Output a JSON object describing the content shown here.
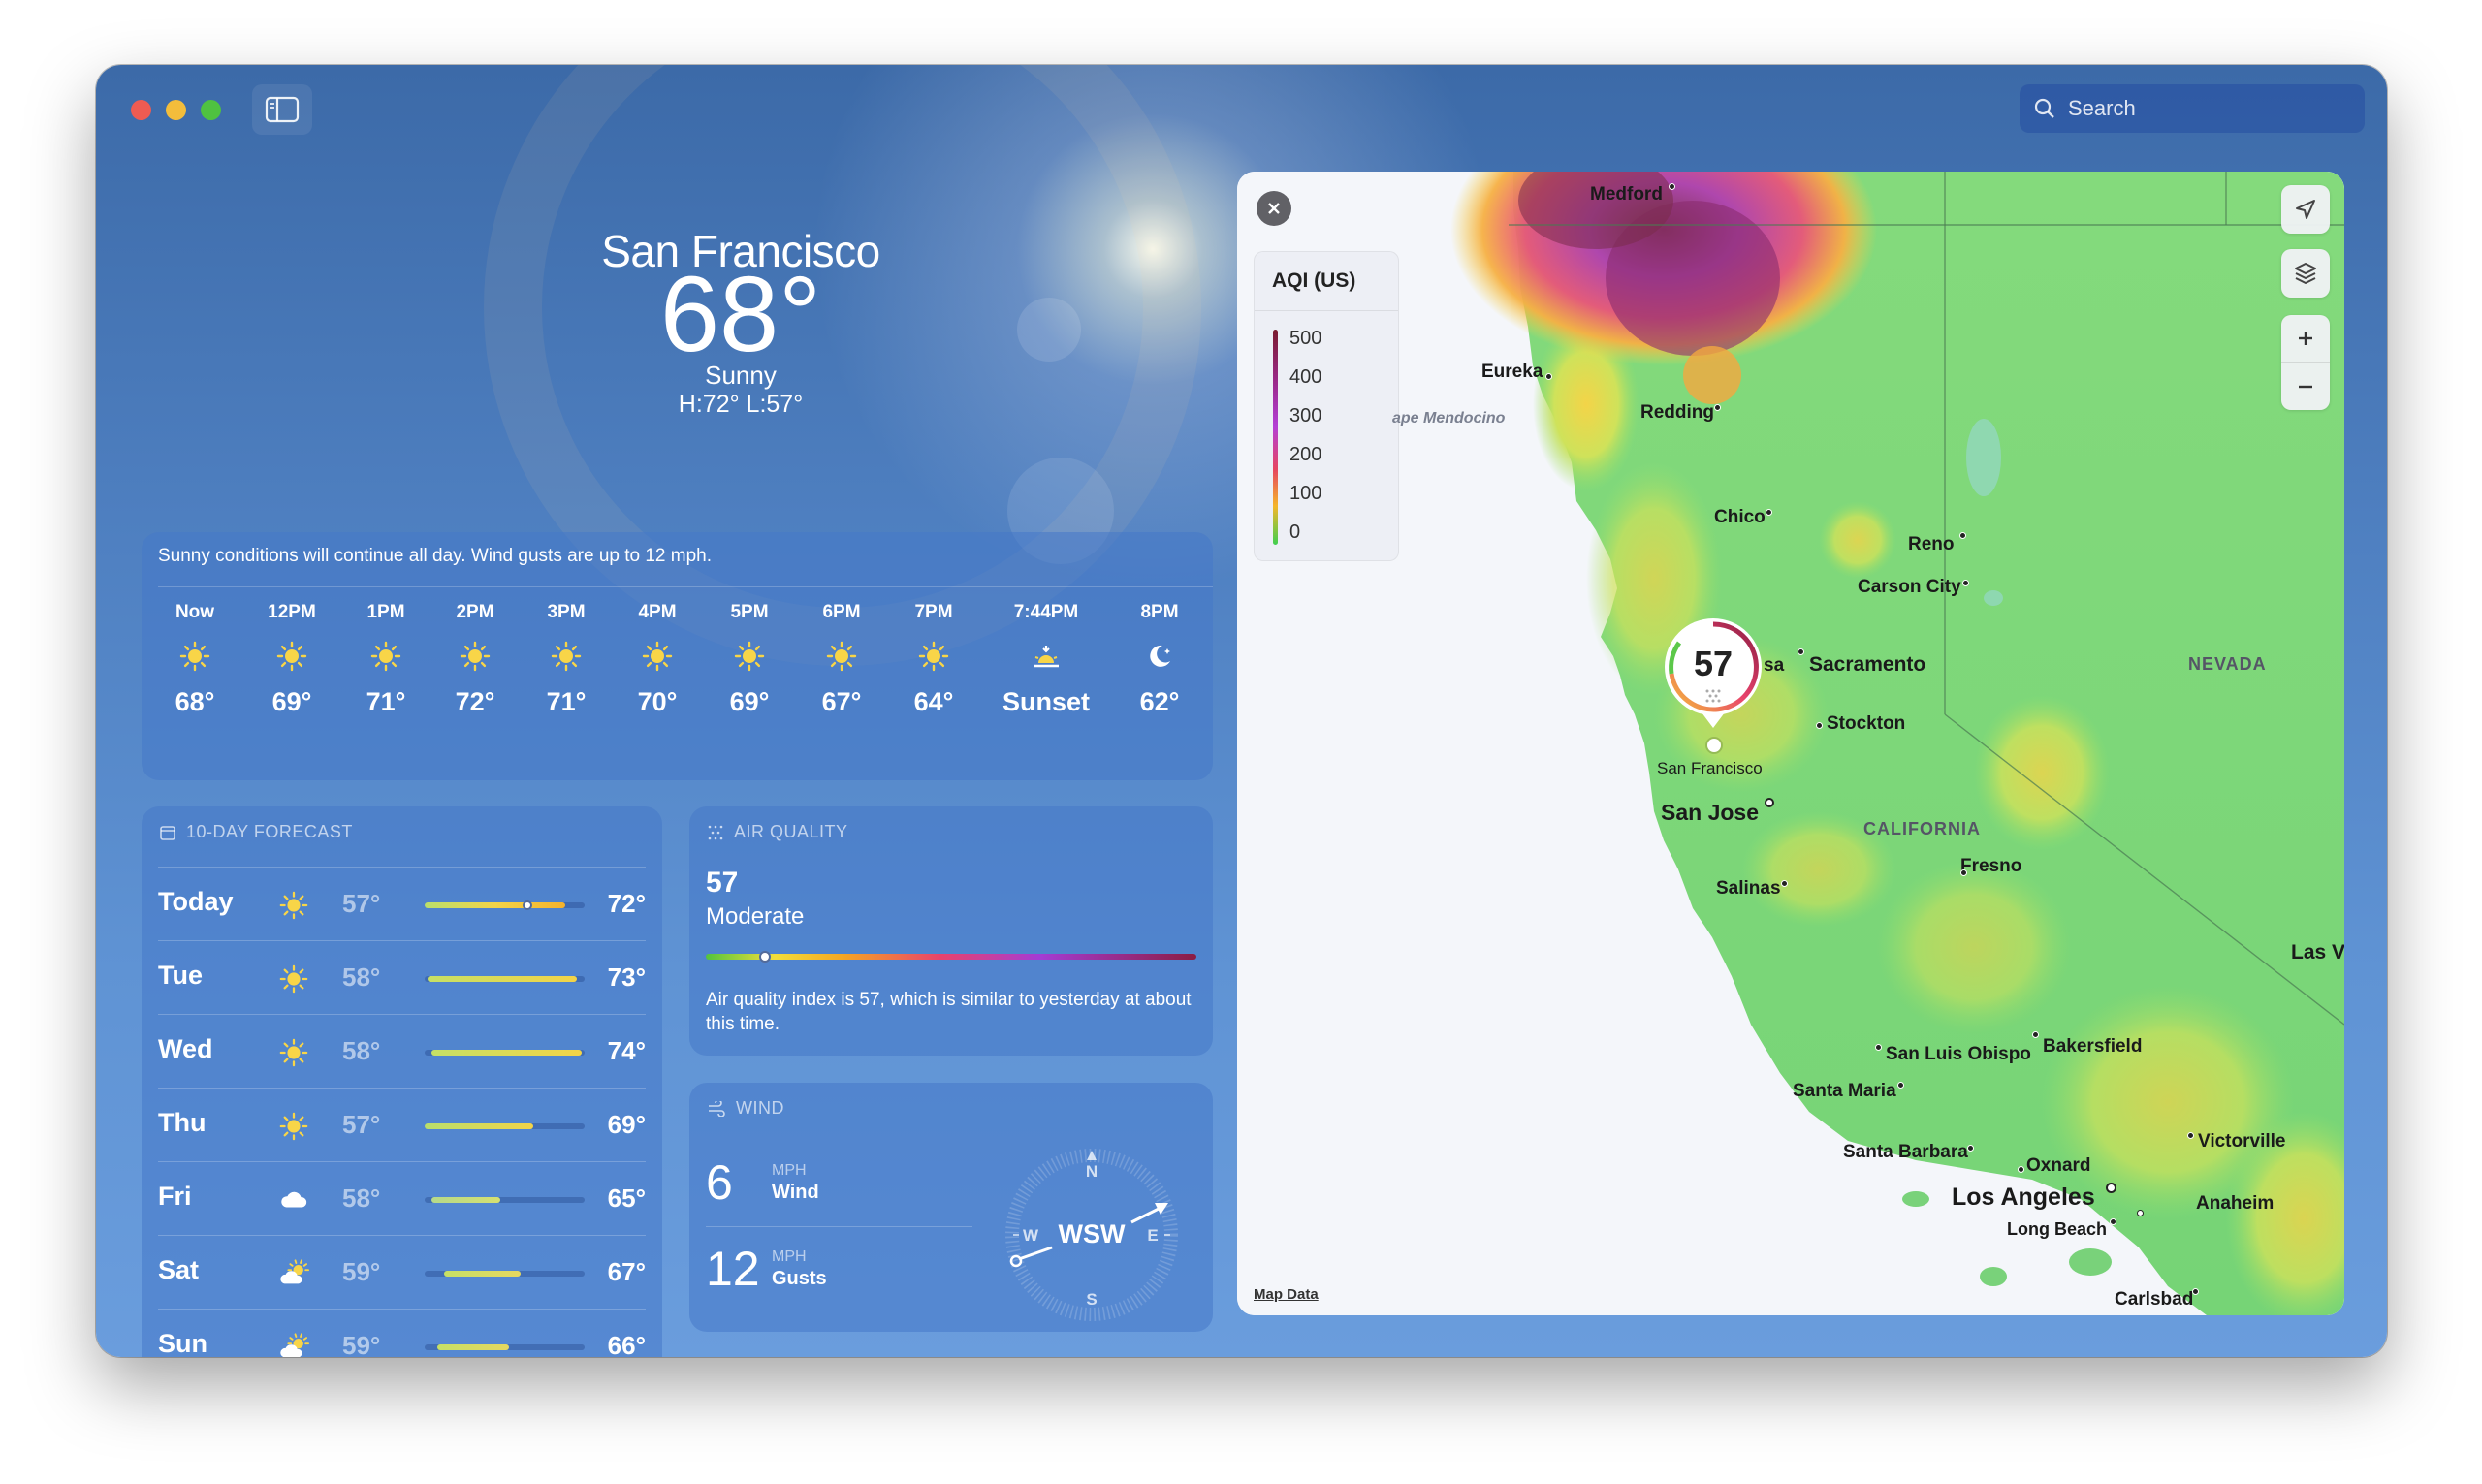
{
  "window": {
    "search_placeholder": "Search"
  },
  "location": {
    "city": "San Francisco",
    "temperature": "68°",
    "condition": "Sunny",
    "hilo": "H:72°  L:57°"
  },
  "hourly": {
    "summary": "Sunny conditions will continue all day. Wind gusts are up to 12 mph.",
    "hours": [
      {
        "label": "Now",
        "icon": "sun-icon",
        "temp": "68°"
      },
      {
        "label": "12PM",
        "icon": "sun-icon",
        "temp": "69°"
      },
      {
        "label": "1PM",
        "icon": "sun-icon",
        "temp": "71°"
      },
      {
        "label": "2PM",
        "icon": "sun-icon",
        "temp": "72°"
      },
      {
        "label": "3PM",
        "icon": "sun-icon",
        "temp": "71°"
      },
      {
        "label": "4PM",
        "icon": "sun-icon",
        "temp": "70°"
      },
      {
        "label": "5PM",
        "icon": "sun-icon",
        "temp": "69°"
      },
      {
        "label": "6PM",
        "icon": "sun-icon",
        "temp": "67°"
      },
      {
        "label": "7PM",
        "icon": "sun-icon",
        "temp": "64°"
      },
      {
        "label": "7:44PM",
        "icon": "sunset-icon",
        "temp": "Sunset"
      },
      {
        "label": "8PM",
        "icon": "moon-icon",
        "temp": "62°"
      }
    ]
  },
  "forecast": {
    "title": "10-DAY FORECAST",
    "days": [
      {
        "day": "Today",
        "icon": "sun-icon",
        "low": "57°",
        "high": "72°",
        "range_start": 0.0,
        "range_end": 0.88,
        "current": 0.64
      },
      {
        "day": "Tue",
        "icon": "sun-icon",
        "low": "58°",
        "high": "73°",
        "range_start": 0.02,
        "range_end": 0.95
      },
      {
        "day": "Wed",
        "icon": "sun-icon",
        "low": "58°",
        "high": "74°",
        "range_start": 0.04,
        "range_end": 0.98
      },
      {
        "day": "Thu",
        "icon": "sun-icon",
        "low": "57°",
        "high": "69°",
        "range_start": 0.0,
        "range_end": 0.68
      },
      {
        "day": "Fri",
        "icon": "cloud-icon",
        "low": "58°",
        "high": "65°",
        "range_start": 0.04,
        "range_end": 0.47
      },
      {
        "day": "Sat",
        "icon": "partly-cloudy-icon",
        "low": "59°",
        "high": "67°",
        "range_start": 0.12,
        "range_end": 0.6
      },
      {
        "day": "Sun",
        "icon": "partly-cloudy-icon",
        "low": "59°",
        "high": "66°",
        "range_start": 0.08,
        "range_end": 0.53
      }
    ]
  },
  "air_quality": {
    "title": "AIR QUALITY",
    "value": "57",
    "category": "Moderate",
    "scale_position": 0.12,
    "description": "Air quality index is 57, which is similar to yesterday at about this time."
  },
  "wind": {
    "title": "WIND",
    "wind_speed": "6",
    "wind_unit": "MPH",
    "wind_label": "Wind",
    "gust_speed": "12",
    "gust_unit": "MPH",
    "gust_label": "Gusts",
    "direction": "WSW",
    "compass": {
      "n": "N",
      "s": "S",
      "e": "E",
      "w": "W"
    }
  },
  "map": {
    "legend_title": "AQI (US)",
    "legend_values": [
      "500",
      "400",
      "300",
      "200",
      "100",
      "0"
    ],
    "pin_value": "57",
    "map_data_link": "Map Data",
    "cities": {
      "medford": "Medford",
      "eureka": "Eureka",
      "mendocino": "ape Mendocino",
      "redding": "Redding",
      "chico": "Chico",
      "reno": "Reno",
      "carson_city": "Carson City",
      "sacramento": "Sacramento",
      "sa_partial": "sa",
      "stockton": "Stockton",
      "san_francisco": "San Francisco",
      "san_jose": "San Jose",
      "salinas": "Salinas",
      "fresno": "Fresno",
      "san_luis_obispo": "San Luis Obispo",
      "bakersfield": "Bakersfield",
      "santa_maria": "Santa Maria",
      "santa_barbara": "Santa Barbara",
      "oxnard": "Oxnard",
      "los_angeles": "Los Angeles",
      "anaheim": "Anaheim",
      "long_beach": "Long Beach",
      "victorville": "Victorville",
      "carlsbad": "Carlsbad",
      "las_vegas_partial": "Las V"
    },
    "regions": {
      "california": "CALIFORNIA",
      "nevada": "NEVADA"
    }
  }
}
